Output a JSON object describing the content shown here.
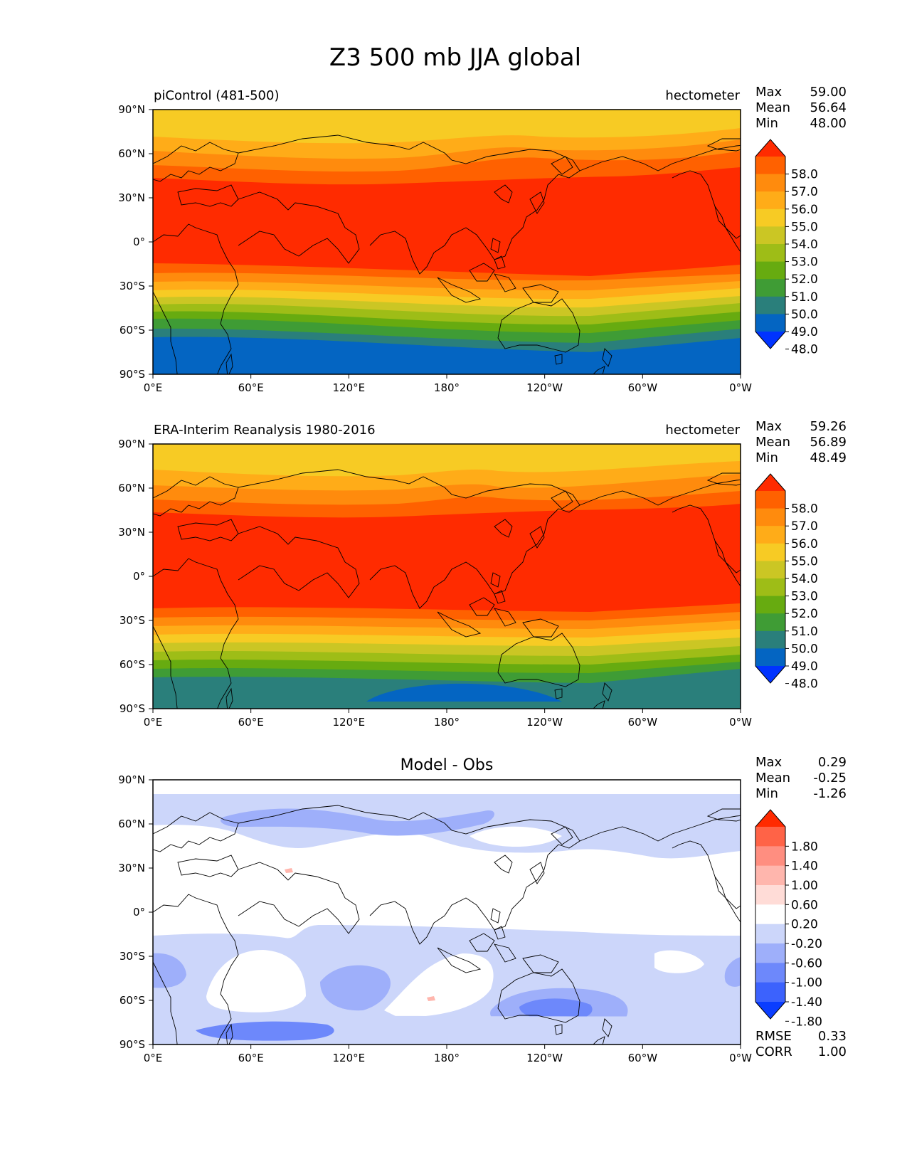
{
  "figure": {
    "title": "Z3 500 mb JJA global"
  },
  "panels": [
    {
      "id": "model",
      "title_left": "piControl (481-500)",
      "title_right": "hectometer",
      "title_center": "",
      "stats": [
        {
          "label": "Max",
          "value": "59.00"
        },
        {
          "label": "Mean",
          "value": "56.64"
        },
        {
          "label": "Min",
          "value": "48.00"
        }
      ],
      "bottom_stats": [],
      "colorbar_labels": [
        "58.0",
        "57.0",
        "56.0",
        "55.0",
        "54.0",
        "53.0",
        "52.0",
        "51.0",
        "50.0",
        "49.0",
        "48.0"
      ],
      "colorbar_colors": [
        "#ff2b00",
        "#ff6100",
        "#ff8b0d",
        "#ffac18",
        "#f7cb24",
        "#cbc624",
        "#9ebd17",
        "#67ab10",
        "#3f9c35",
        "#2a7f7b",
        "#0465c2",
        "#0033ff"
      ]
    },
    {
      "id": "obs",
      "title_left": "ERA-Interim Reanalysis 1980-2016",
      "title_right": "hectometer",
      "title_center": "",
      "stats": [
        {
          "label": "Max",
          "value": "59.26"
        },
        {
          "label": "Mean",
          "value": "56.89"
        },
        {
          "label": "Min",
          "value": "48.49"
        }
      ],
      "bottom_stats": [],
      "colorbar_labels": [
        "58.0",
        "57.0",
        "56.0",
        "55.0",
        "54.0",
        "53.0",
        "52.0",
        "51.0",
        "50.0",
        "49.0",
        "48.0"
      ],
      "colorbar_colors": [
        "#ff2b00",
        "#ff6100",
        "#ff8b0d",
        "#ffac18",
        "#f7cb24",
        "#cbc624",
        "#9ebd17",
        "#67ab10",
        "#3f9c35",
        "#2a7f7b",
        "#0465c2",
        "#0033ff"
      ]
    },
    {
      "id": "diff",
      "title_left": "",
      "title_right": "",
      "title_center": "Model - Obs",
      "stats": [
        {
          "label": "Max",
          "value": "0.29"
        },
        {
          "label": "Mean",
          "value": "-0.25"
        },
        {
          "label": "Min",
          "value": "-1.26"
        }
      ],
      "bottom_stats": [
        {
          "label": "RMSE",
          "value": "0.33"
        },
        {
          "label": "CORR",
          "value": "1.00"
        }
      ],
      "colorbar_labels": [
        "1.80",
        "1.40",
        "1.00",
        "0.60",
        "0.20",
        "-0.20",
        "-0.60",
        "-1.00",
        "-1.40",
        "-1.80"
      ],
      "colorbar_colors": [
        "#ff2a00",
        "#ff6347",
        "#ff8e80",
        "#ffb6ad",
        "#ffdcd7",
        "#ffffff",
        "#ccd6fa",
        "#9eaffa",
        "#6d88fb",
        "#3c62fd",
        "#0a3dff"
      ]
    }
  ],
  "axes": {
    "lon_ticks": [
      "0°E",
      "60°E",
      "120°E",
      "180°",
      "120°W",
      "60°W",
      "0°W"
    ],
    "lat_ticks": [
      "90°N",
      "60°N",
      "30°N",
      "0°",
      "30°S",
      "60°S",
      "90°S"
    ]
  },
  "chart_data": [
    {
      "type": "heatmap",
      "title": "piControl (481-500)",
      "units": "hectometer",
      "levels": [
        48,
        49,
        50,
        51,
        52,
        53,
        54,
        55,
        56,
        57,
        58
      ],
      "max": 59.0,
      "mean": 56.64,
      "min": 48.0
    },
    {
      "type": "heatmap",
      "title": "ERA-Interim Reanalysis 1980-2016",
      "units": "hectometer",
      "levels": [
        48,
        49,
        50,
        51,
        52,
        53,
        54,
        55,
        56,
        57,
        58
      ],
      "max": 59.26,
      "mean": 56.89,
      "min": 48.49
    },
    {
      "type": "heatmap",
      "title": "Model - Obs",
      "levels": [
        -1.8,
        -1.4,
        -1.0,
        -0.6,
        -0.2,
        0.2,
        0.6,
        1.0,
        1.4,
        1.8
      ],
      "max": 0.29,
      "mean": -0.25,
      "min": -1.26,
      "rmse": 0.33,
      "corr": 1.0
    }
  ]
}
